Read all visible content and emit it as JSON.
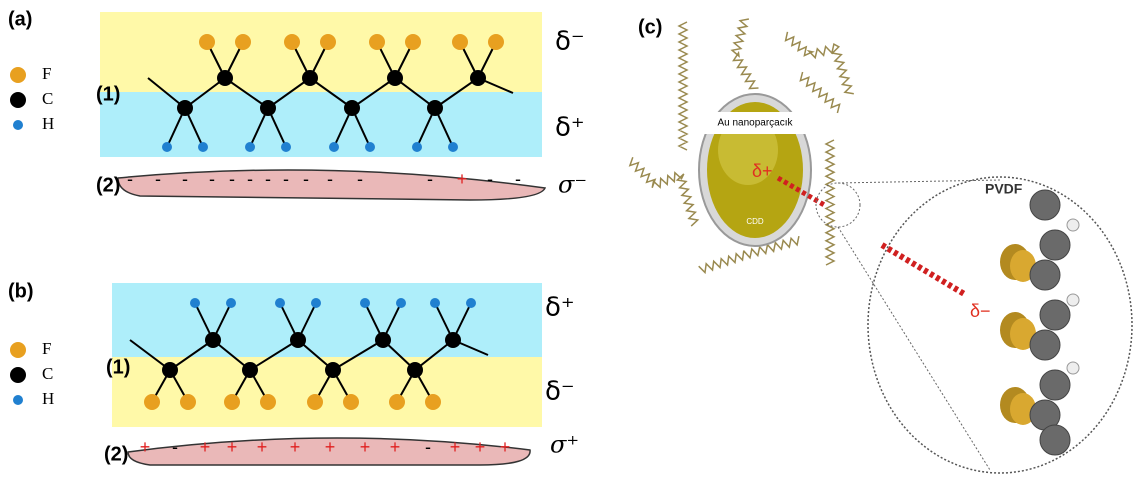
{
  "panel_a": {
    "label": "(a)",
    "legend": [
      "F",
      "C",
      "H"
    ],
    "layer1": "(1)",
    "layer2": "(2)",
    "top_charge": "δ⁻",
    "bottom_charge": "δ⁺",
    "surface_charge": "σ⁻",
    "surface_signs": [
      "-",
      "-",
      "-",
      "-",
      "-",
      "-",
      "-",
      "-",
      "-",
      "-",
      "-",
      "-",
      "+",
      "-",
      "-"
    ]
  },
  "panel_b": {
    "label": "(b)",
    "legend": [
      "F",
      "C",
      "H"
    ],
    "layer1": "(1)",
    "layer2": "(2)",
    "top_charge": "δ⁺",
    "bottom_charge": "δ⁻",
    "surface_charge": "σ⁺",
    "surface_signs": [
      "+",
      "-",
      "+",
      "+",
      "+",
      "+",
      "+",
      "+",
      "+",
      "-",
      "+",
      "+",
      "+"
    ]
  },
  "panel_c": {
    "label": "(c)",
    "particle": "Au nanoparçacık",
    "coating": "CDD",
    "particle_charge": "δ+",
    "polymer": "PVDF",
    "polymer_charge": "δ−"
  }
}
